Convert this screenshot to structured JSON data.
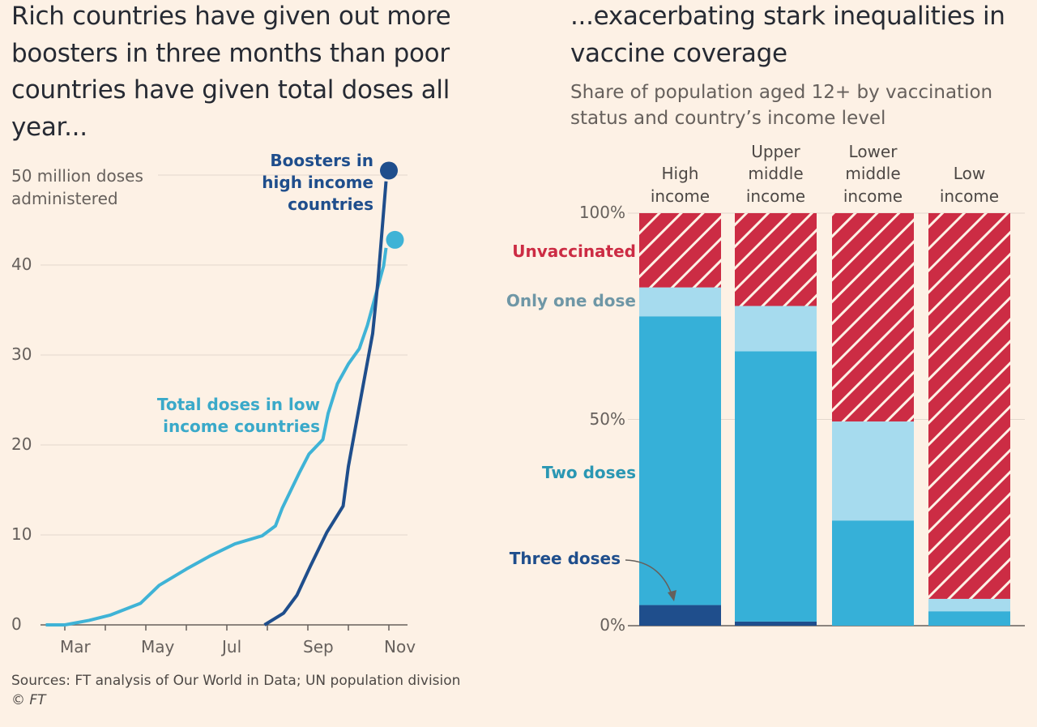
{
  "colors": {
    "background": "#fdf1e5",
    "boosters": "#1f4e8c",
    "low_income": "#3fb3d6",
    "three_doses": "#1f4e8c",
    "two_doses": "#36b0d8",
    "one_dose": "#a6dbee",
    "unvaccinated": "#cc2c44",
    "grid": "#e3d8cd",
    "axis": "#66605c"
  },
  "chart_data": [
    {
      "type": "line",
      "title": "Rich countries have given out more boosters in three months than poor countries have given total doses all year...",
      "ylabel": "50 million doses administered",
      "xlabel": "",
      "ylim": [
        0,
        50
      ],
      "yticks": [
        "0",
        "10",
        "20",
        "30",
        "40"
      ],
      "ytick_values": [
        0,
        10,
        20,
        30,
        40
      ],
      "top_tick_label": "50 million doses",
      "top_tick_label_line2": "administered",
      "xlim_month": [
        2.4,
        11.4
      ],
      "xtick_months": [
        3,
        4,
        5,
        6,
        7,
        8,
        9,
        10,
        11
      ],
      "xtick_labels": [
        {
          "month": 3,
          "label": "Mar"
        },
        {
          "month": 5,
          "label": "May"
        },
        {
          "month": 7,
          "label": "Jul"
        },
        {
          "month": 9,
          "label": "Sep"
        },
        {
          "month": 11,
          "label": "Nov"
        }
      ],
      "grid": true,
      "series": [
        {
          "name": "Total doses in low income countries",
          "label_line1": "Total doses in low",
          "label_line2": "income countries",
          "x": [
            2.53,
            3.0,
            3.6,
            4.13,
            4.87,
            5.33,
            6.0,
            6.6,
            7.2,
            7.87,
            8.2,
            8.37,
            8.8,
            9.03,
            9.37,
            9.5,
            9.73,
            10.0,
            10.27,
            10.47,
            10.87,
            10.93
          ],
          "y": [
            0,
            0,
            0.5,
            1.1,
            2.4,
            4.4,
            6.2,
            7.7,
            9.0,
            9.9,
            11,
            13,
            17,
            19,
            20.6,
            23.5,
            26.8,
            29,
            30.7,
            33.3,
            39.9,
            41.9
          ],
          "end_point": {
            "x": 11.15,
            "y": 42.8
          }
        },
        {
          "name": "Boosters in high income countries",
          "label_line1": "Boosters in",
          "label_line2": "high income",
          "label_line3": "countries",
          "x": [
            7.93,
            8.4,
            8.73,
            9.07,
            9.47,
            9.87,
            10.0,
            10.27,
            10.6,
            10.73,
            10.93
          ],
          "y": [
            0,
            1.3,
            3.3,
            6.6,
            10.3,
            13.2,
            17.6,
            24.3,
            32.4,
            38.2,
            49.3
          ],
          "end_point": {
            "x": 11.0,
            "y": 50.5
          }
        }
      ]
    },
    {
      "type": "bar",
      "stacked": true,
      "title": "...exacerbating stark inequalities in vaccine coverage",
      "subtitle": "Share of population aged 12+ by vaccination status and country’s income level",
      "ylim": [
        0,
        100
      ],
      "yticks": [
        "0%",
        "50%",
        "100%"
      ],
      "ytick_values": [
        0,
        50,
        100
      ],
      "categories": [
        {
          "line1": "High",
          "line2": "income"
        },
        {
          "line1": "Upper",
          "line2": "middle",
          "line3": "income"
        },
        {
          "line1": "Lower",
          "line2": "middle",
          "line3": "income"
        },
        {
          "line1": "Low",
          "line2": "income"
        }
      ],
      "series": [
        {
          "name": "Three doses",
          "values": [
            5,
            1,
            0,
            0
          ]
        },
        {
          "name": "Two doses",
          "values": [
            70,
            65.5,
            25.5,
            3.5
          ]
        },
        {
          "name": "Only one dose",
          "values": [
            7,
            11,
            24,
            3
          ]
        },
        {
          "name": "Unvaccinated",
          "values": [
            18,
            22.5,
            50.5,
            93.5
          ]
        }
      ]
    }
  ],
  "footer": {
    "sources": "Sources: FT analysis of Our World in Data; UN population division",
    "copyright": "© FT"
  }
}
